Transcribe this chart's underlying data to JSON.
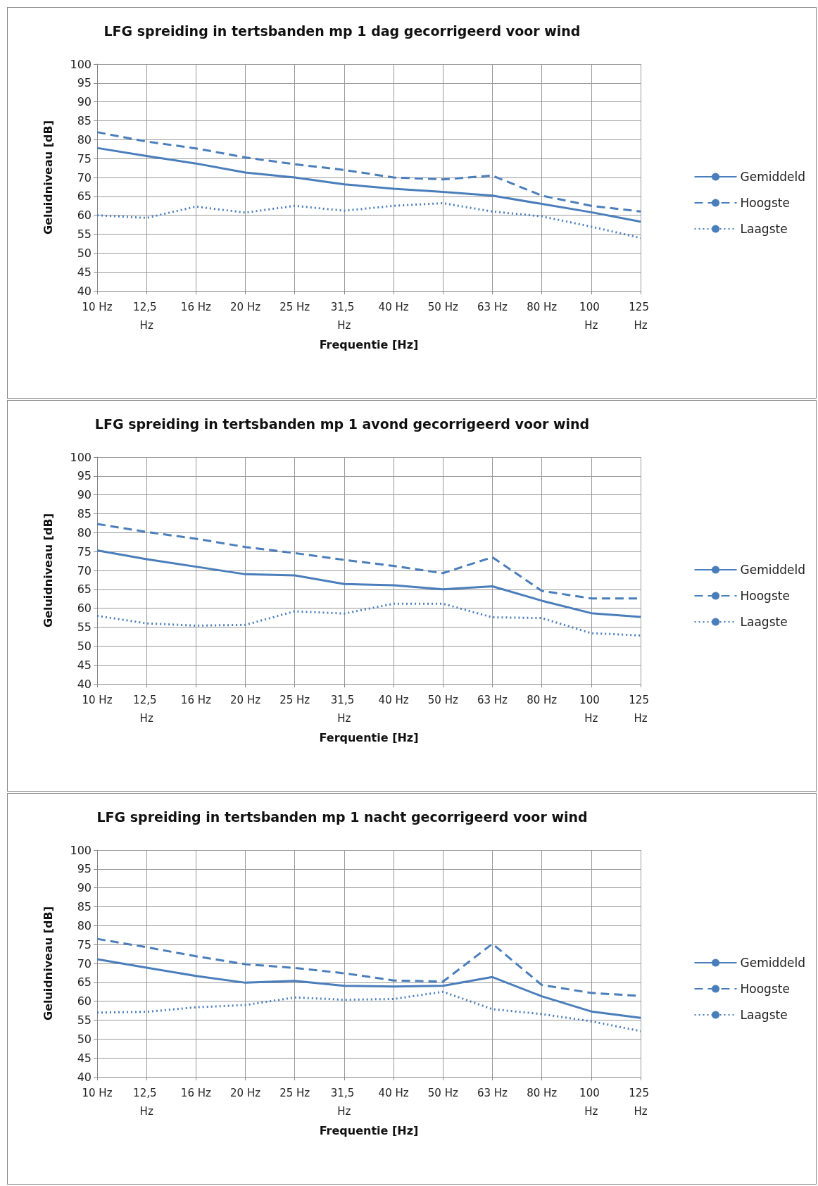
{
  "chart_data": [
    {
      "type": "line",
      "title": "LFG spreiding in tertsbanden mp 1 dag gecorrigeerd voor wind",
      "xlabel": "Frequentie [Hz]",
      "ylabel": "Geluidniveau [dB]",
      "categories": [
        "10 Hz",
        "12,5 Hz",
        "16 Hz",
        "20 Hz",
        "25 Hz",
        "31,5 Hz",
        "40 Hz",
        "50 Hz",
        "63 Hz",
        "80 Hz",
        "100 Hz",
        "125 Hz"
      ],
      "series": [
        {
          "name": "Gemiddeld",
          "color": "#4a7ebb",
          "line_style": "solid",
          "values": [
            77.8,
            75.7,
            73.7,
            71.3,
            70,
            68.2,
            67,
            66.2,
            65.2,
            63,
            60.8,
            58.3
          ]
        },
        {
          "name": "Hoogste",
          "color": "#4a7ebb",
          "line_style": "dashed",
          "values": [
            82,
            79.5,
            77.7,
            75.3,
            73.5,
            72,
            70,
            69.5,
            70.5,
            65.2,
            62.5,
            61
          ]
        },
        {
          "name": "Laagste",
          "color": "#4a7ebb",
          "line_style": "dotted",
          "values": [
            60,
            59.3,
            62.3,
            60.7,
            62.5,
            61.2,
            62.5,
            63.2,
            61,
            59.7,
            57,
            54
          ]
        }
      ],
      "ylim": [
        40,
        100
      ],
      "yticks": [
        40,
        45,
        50,
        55,
        60,
        65,
        70,
        75,
        80,
        85,
        90,
        95,
        100
      ],
      "grid": true,
      "legend": "right",
      "marker": "none"
    },
    {
      "type": "line",
      "title": "LFG spreiding in tertsbanden mp 1 avond gecorrigeerd voor wind",
      "xlabel": "Ferquentie [Hz]",
      "ylabel": "Geluidniveau [dB]",
      "categories": [
        "10 Hz",
        "12,5 Hz",
        "16 Hz",
        "20 Hz",
        "25 Hz",
        "31,5 Hz",
        "40 Hz",
        "50 Hz",
        "63 Hz",
        "80 Hz",
        "100 Hz",
        "125 Hz"
      ],
      "series": [
        {
          "name": "Gemiddeld",
          "color": "#4a7ebb",
          "line_style": "solid",
          "values": [
            75.3,
            73,
            71,
            69,
            68.7,
            66.4,
            66.1,
            65,
            65.8,
            62,
            58.7,
            57.7
          ]
        },
        {
          "name": "Hoogste",
          "color": "#4a7ebb",
          "line_style": "dashed",
          "values": [
            82.3,
            80.2,
            78.4,
            76.2,
            74.6,
            72.8,
            71.2,
            69.3,
            73.5,
            64.6,
            62.6,
            62.6
          ]
        },
        {
          "name": "Laagste",
          "color": "#4a7ebb",
          "line_style": "dotted",
          "values": [
            58,
            56,
            55.4,
            55.6,
            59.2,
            58.6,
            61.2,
            61.2,
            57.6,
            57.4,
            53.4,
            52.8
          ]
        }
      ],
      "ylim": [
        40,
        100
      ],
      "yticks": [
        40,
        45,
        50,
        55,
        60,
        65,
        70,
        75,
        80,
        85,
        90,
        95,
        100
      ],
      "grid": true,
      "legend": "right",
      "marker": "none"
    },
    {
      "type": "line",
      "title": "LFG spreiding in tertsbanden mp 1 nacht gecorrigeerd voor wind",
      "xlabel": "Frequentie [Hz]",
      "ylabel": "Geluidniveau [dB]",
      "categories": [
        "10 Hz",
        "12,5 Hz",
        "16 Hz",
        "20 Hz",
        "25 Hz",
        "31,5 Hz",
        "40 Hz",
        "50 Hz",
        "63 Hz",
        "80 Hz",
        "100 Hz",
        "125 Hz"
      ],
      "series": [
        {
          "name": "Gemiddeld",
          "color": "#4a7ebb",
          "line_style": "solid",
          "values": [
            71.1,
            68.9,
            66.7,
            64.9,
            65.4,
            64.1,
            63.9,
            64.1,
            66.4,
            61.3,
            57.3,
            55.6
          ]
        },
        {
          "name": "Hoogste",
          "color": "#4a7ebb",
          "line_style": "dashed",
          "values": [
            76.5,
            74.3,
            71.9,
            69.8,
            68.8,
            67.4,
            65.5,
            65.2,
            75.2,
            64.3,
            62.2,
            61.4
          ]
        },
        {
          "name": "Laagste",
          "color": "#4a7ebb",
          "line_style": "dotted",
          "values": [
            57,
            57.2,
            58.4,
            59,
            61,
            60.4,
            60.6,
            62.5,
            57.9,
            56.6,
            54.7,
            52.1
          ]
        }
      ],
      "ylim": [
        40,
        100
      ],
      "yticks": [
        40,
        45,
        50,
        55,
        60,
        65,
        70,
        75,
        80,
        85,
        90,
        95,
        100
      ],
      "grid": true,
      "legend": "right",
      "marker": "none"
    }
  ]
}
